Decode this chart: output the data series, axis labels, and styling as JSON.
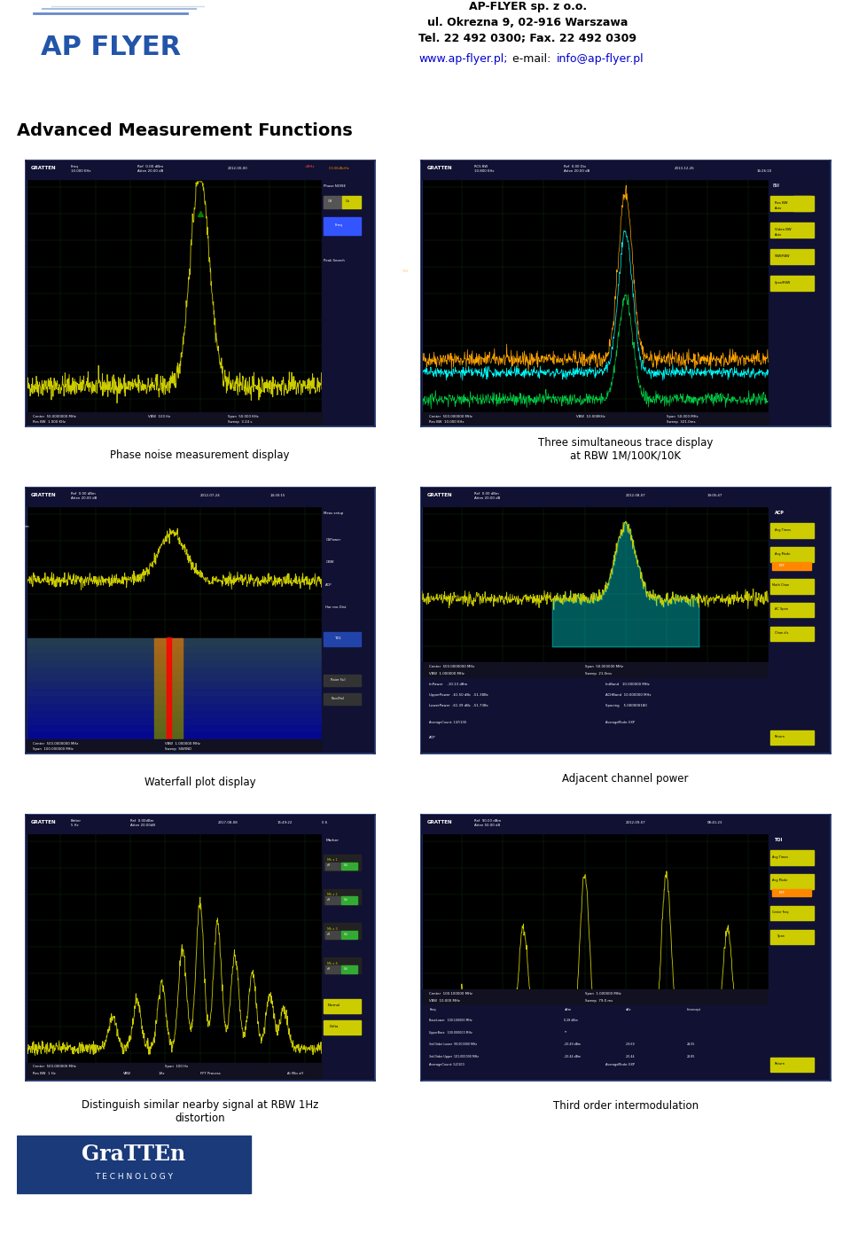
{
  "title_company": "AP-FLYER sp. z o.o.",
  "title_address": "ul. Okrezna 9, 02-916 Warszawa",
  "title_phone": "Tel. 22 492 0300; Fax. 22 492 0309",
  "title_web": "www.ap-flyer.pl",
  "title_email": "info@ap-flyer.pl",
  "section_title": "Advanced Measurement Functions",
  "captions": [
    "Phase noise measurement display",
    "Three simultaneous trace display\nat RBW 1M/100K/10K",
    "Waterfall plot display",
    "Adjacent channel power",
    "Distinguish similar nearby signal at RBW 1Hz\ndistortion",
    "Third order intermodulation"
  ],
  "background_color": "#ffffff",
  "screen_bg": "#000000",
  "screen_border": "#1a3a6b"
}
